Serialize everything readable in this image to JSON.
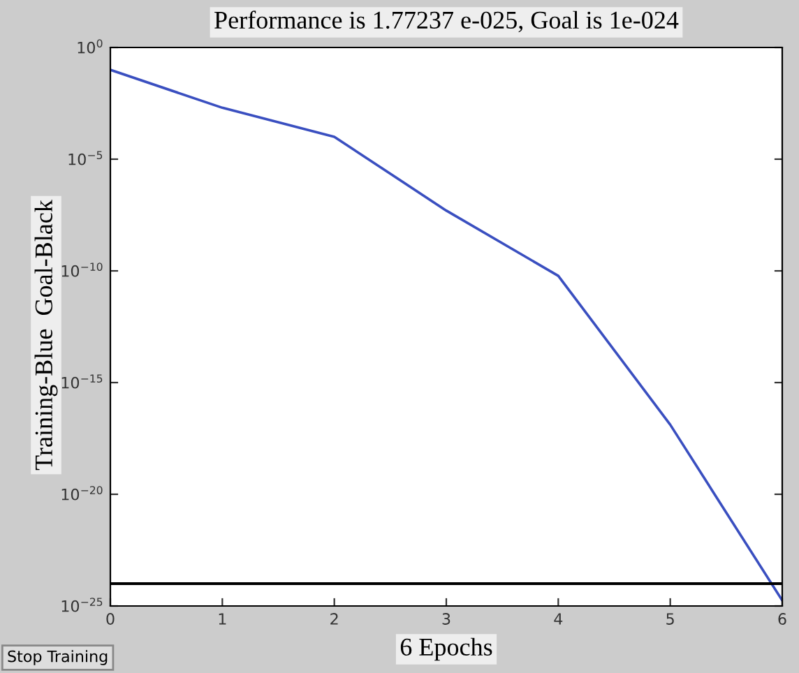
{
  "chart_data": {
    "type": "line",
    "title": "Performance is 1.77237 e-025, Goal is 1e-024",
    "xlabel": "6 Epochs",
    "ylabel": "Training-Blue  Goal-Black",
    "x": [
      0,
      1,
      2,
      3,
      4,
      5,
      6
    ],
    "series": [
      {
        "color": "#3a4fc0",
        "values": [
          0.1,
          0.002,
          0.0001,
          5e-08,
          6e-11,
          1.3e-17,
          1.77237e-25
        ]
      }
    ],
    "log": "y",
    "xlim": [
      0,
      6
    ],
    "xticks": [
      0,
      1,
      2,
      3,
      4,
      5,
      6
    ],
    "ylim": [
      1e-25,
      1
    ],
    "yticks": [
      {
        "value": 1e-25,
        "label": "10$^{−25}$"
      },
      {
        "value": 1e-20,
        "label": "10$^{−20}$"
      },
      {
        "value": 1e-15,
        "label": "10$^{−15}$"
      },
      {
        "value": 1e-10,
        "label": "10$^{−10}$"
      },
      {
        "value": 1e-05,
        "label": "10$^{−5}$"
      },
      {
        "value": 1,
        "label": "10$^{0}$"
      }
    ],
    "ref_lines": [
      {
        "axis": "y",
        "value": 1e-24,
        "color": "#000000"
      }
    ],
    "annotations": [
      "Stop Training"
    ],
    "grid": false,
    "legend": false,
    "marker": "none",
    "line_style": "solid"
  }
}
